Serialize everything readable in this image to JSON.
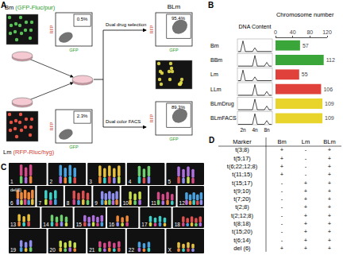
{
  "panel_a": {
    "label": "A",
    "bm_title": "Bm (GFP-Fluc/pur)",
    "lm_title": "Lm (RFP-Rluc/hyg)",
    "blm_title": "BLm",
    "x_axis": "GFP",
    "y_axis": "RFP",
    "gates": {
      "Bm": "0.5%",
      "Lm": "2.3%",
      "BLm_drug": "95.4%",
      "BLm_facs": "89.3%"
    },
    "branches": [
      "Dual drug selection",
      "Dual color FACS"
    ]
  },
  "panel_b": {
    "label": "B",
    "histogram_title": "DNA Content",
    "histogram_ticks": [
      "2n",
      "4n",
      "8n"
    ]
  },
  "chart_data": {
    "type": "bar",
    "orientation": "horizontal",
    "title": "Chromosome number",
    "categories": [
      "Bm",
      "BBm",
      "Lm",
      "LLm",
      "BLmDrug",
      "BLmFACS"
    ],
    "values": [
      57,
      112,
      55,
      106,
      109,
      109
    ],
    "colors": [
      "#3aa63a",
      "#3aa63a",
      "#e0413a",
      "#e0413a",
      "#e8d42a",
      "#e8d42a"
    ],
    "xlim": [
      0,
      120
    ],
    "xticks": [
      0,
      40,
      80,
      120
    ],
    "data_labels": true,
    "tick_labels": "x"
  },
  "panel_c": {
    "label": "C",
    "chromosomes": [
      "1",
      "2",
      "3",
      "4",
      "5",
      "6",
      "7",
      "8",
      "9",
      "10",
      "11",
      "12",
      "13",
      "14",
      "15",
      "16",
      "17",
      "18",
      "19",
      "20",
      "21",
      "22",
      "X"
    ],
    "annotation": "del(6)"
  },
  "panel_d": {
    "label": "D",
    "header": [
      "Marker",
      "Bm",
      "Lm",
      "BLm"
    ],
    "rows": [
      [
        "t(3;8)",
        "+",
        "-",
        "+"
      ],
      [
        "t(5;17)",
        "+",
        "-",
        "+"
      ],
      [
        "t(6;22;12;8)",
        "+",
        "-",
        "+"
      ],
      [
        "t(11;15)",
        "+",
        "-",
        "+"
      ],
      [
        "t(15;17)",
        "-",
        "+",
        "+"
      ],
      [
        "t(9;10)",
        "-",
        "+",
        "+"
      ],
      [
        "t(7;20)",
        "-",
        "+",
        "+"
      ],
      [
        "t(2;8)",
        "-",
        "+",
        "+"
      ],
      [
        "t(2;12;8)",
        "-",
        "+",
        "+"
      ],
      [
        "t(8;18)",
        "-",
        "+",
        "+"
      ],
      [
        "t(15;20)",
        "-",
        "+",
        "+"
      ],
      [
        "t(6;14)",
        "-",
        "+",
        "+"
      ],
      [
        "del (6)",
        "+",
        "+",
        "+"
      ]
    ]
  }
}
